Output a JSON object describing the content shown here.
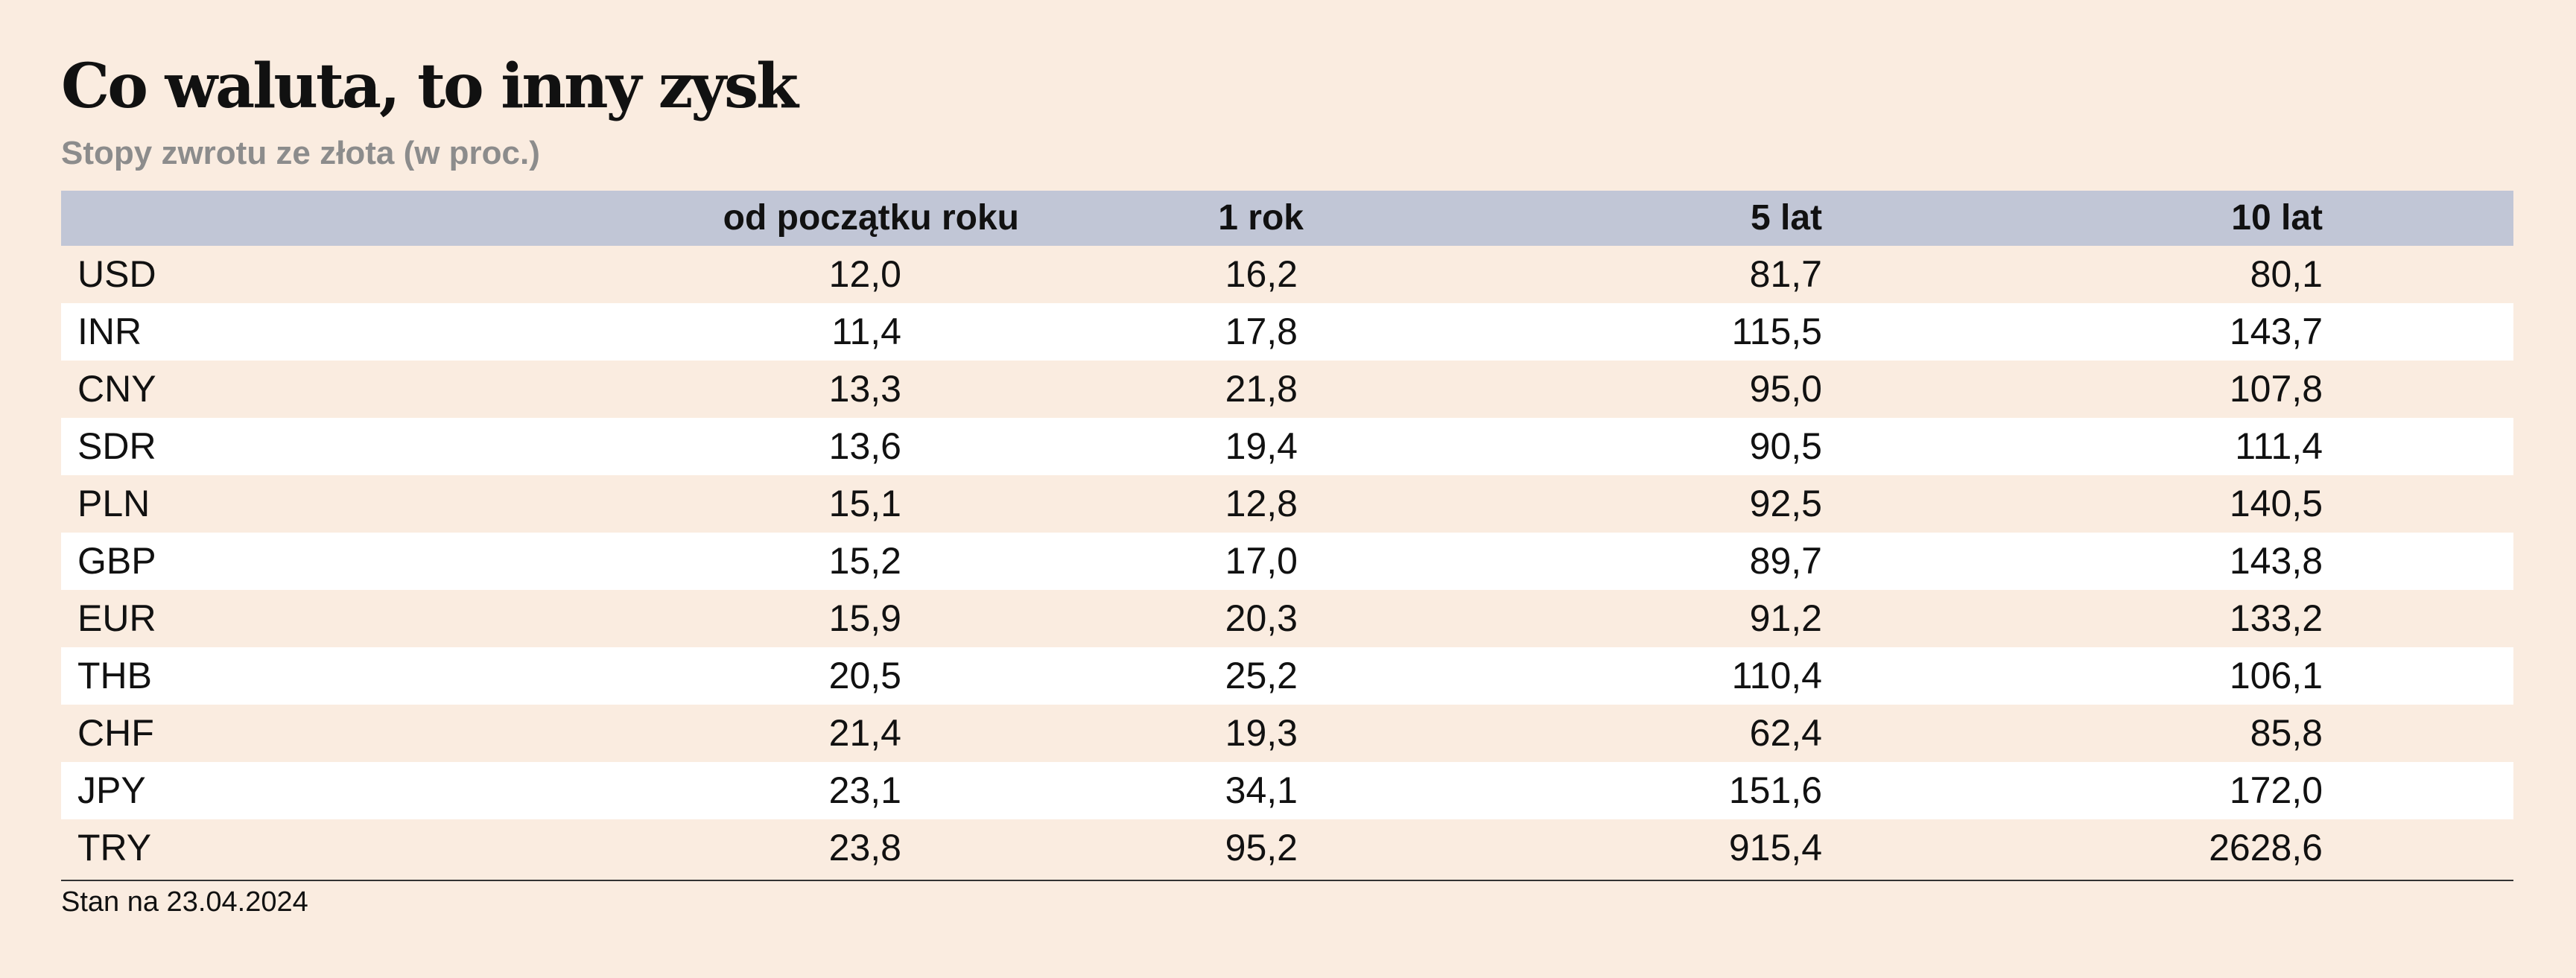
{
  "title": "Co waluta, to inny zysk",
  "subtitle": "Stopy zwrotu ze złota (w proc.)",
  "footnote": "Stan na 23.04.2024",
  "colors": {
    "background": "#faece0",
    "header_background": "#c1c6d6",
    "stripe": "#ffffff",
    "subtitle": "#8c8c8c"
  },
  "chart_data": {
    "type": "table",
    "title": "Co waluta, to inny zysk",
    "subtitle": "Stopy zwrotu ze złota (w proc.)",
    "columns": [
      "",
      "od początku roku",
      "1 rok",
      "5 lat",
      "10 lat"
    ],
    "rows": [
      [
        "USD",
        "12,0",
        "16,2",
        "81,7",
        "80,1"
      ],
      [
        "INR",
        "11,4",
        "17,8",
        "115,5",
        "143,7"
      ],
      [
        "CNY",
        "13,3",
        "21,8",
        "95,0",
        "107,8"
      ],
      [
        "SDR",
        "13,6",
        "19,4",
        "90,5",
        "111,4"
      ],
      [
        "PLN",
        "15,1",
        "12,8",
        "92,5",
        "140,5"
      ],
      [
        "GBP",
        "15,2",
        "17,0",
        "89,7",
        "143,8"
      ],
      [
        "EUR",
        "15,9",
        "20,3",
        "91,2",
        "133,2"
      ],
      [
        "THB",
        "20,5",
        "25,2",
        "110,4",
        "106,1"
      ],
      [
        "CHF",
        "21,4",
        "19,3",
        "62,4",
        "85,8"
      ],
      [
        "JPY",
        "23,1",
        "34,1",
        "151,6",
        "172,0"
      ],
      [
        "TRY",
        "23,8",
        "95,2",
        "915,4",
        "2628,6"
      ]
    ],
    "note": "Stan na 23.04.2024"
  }
}
